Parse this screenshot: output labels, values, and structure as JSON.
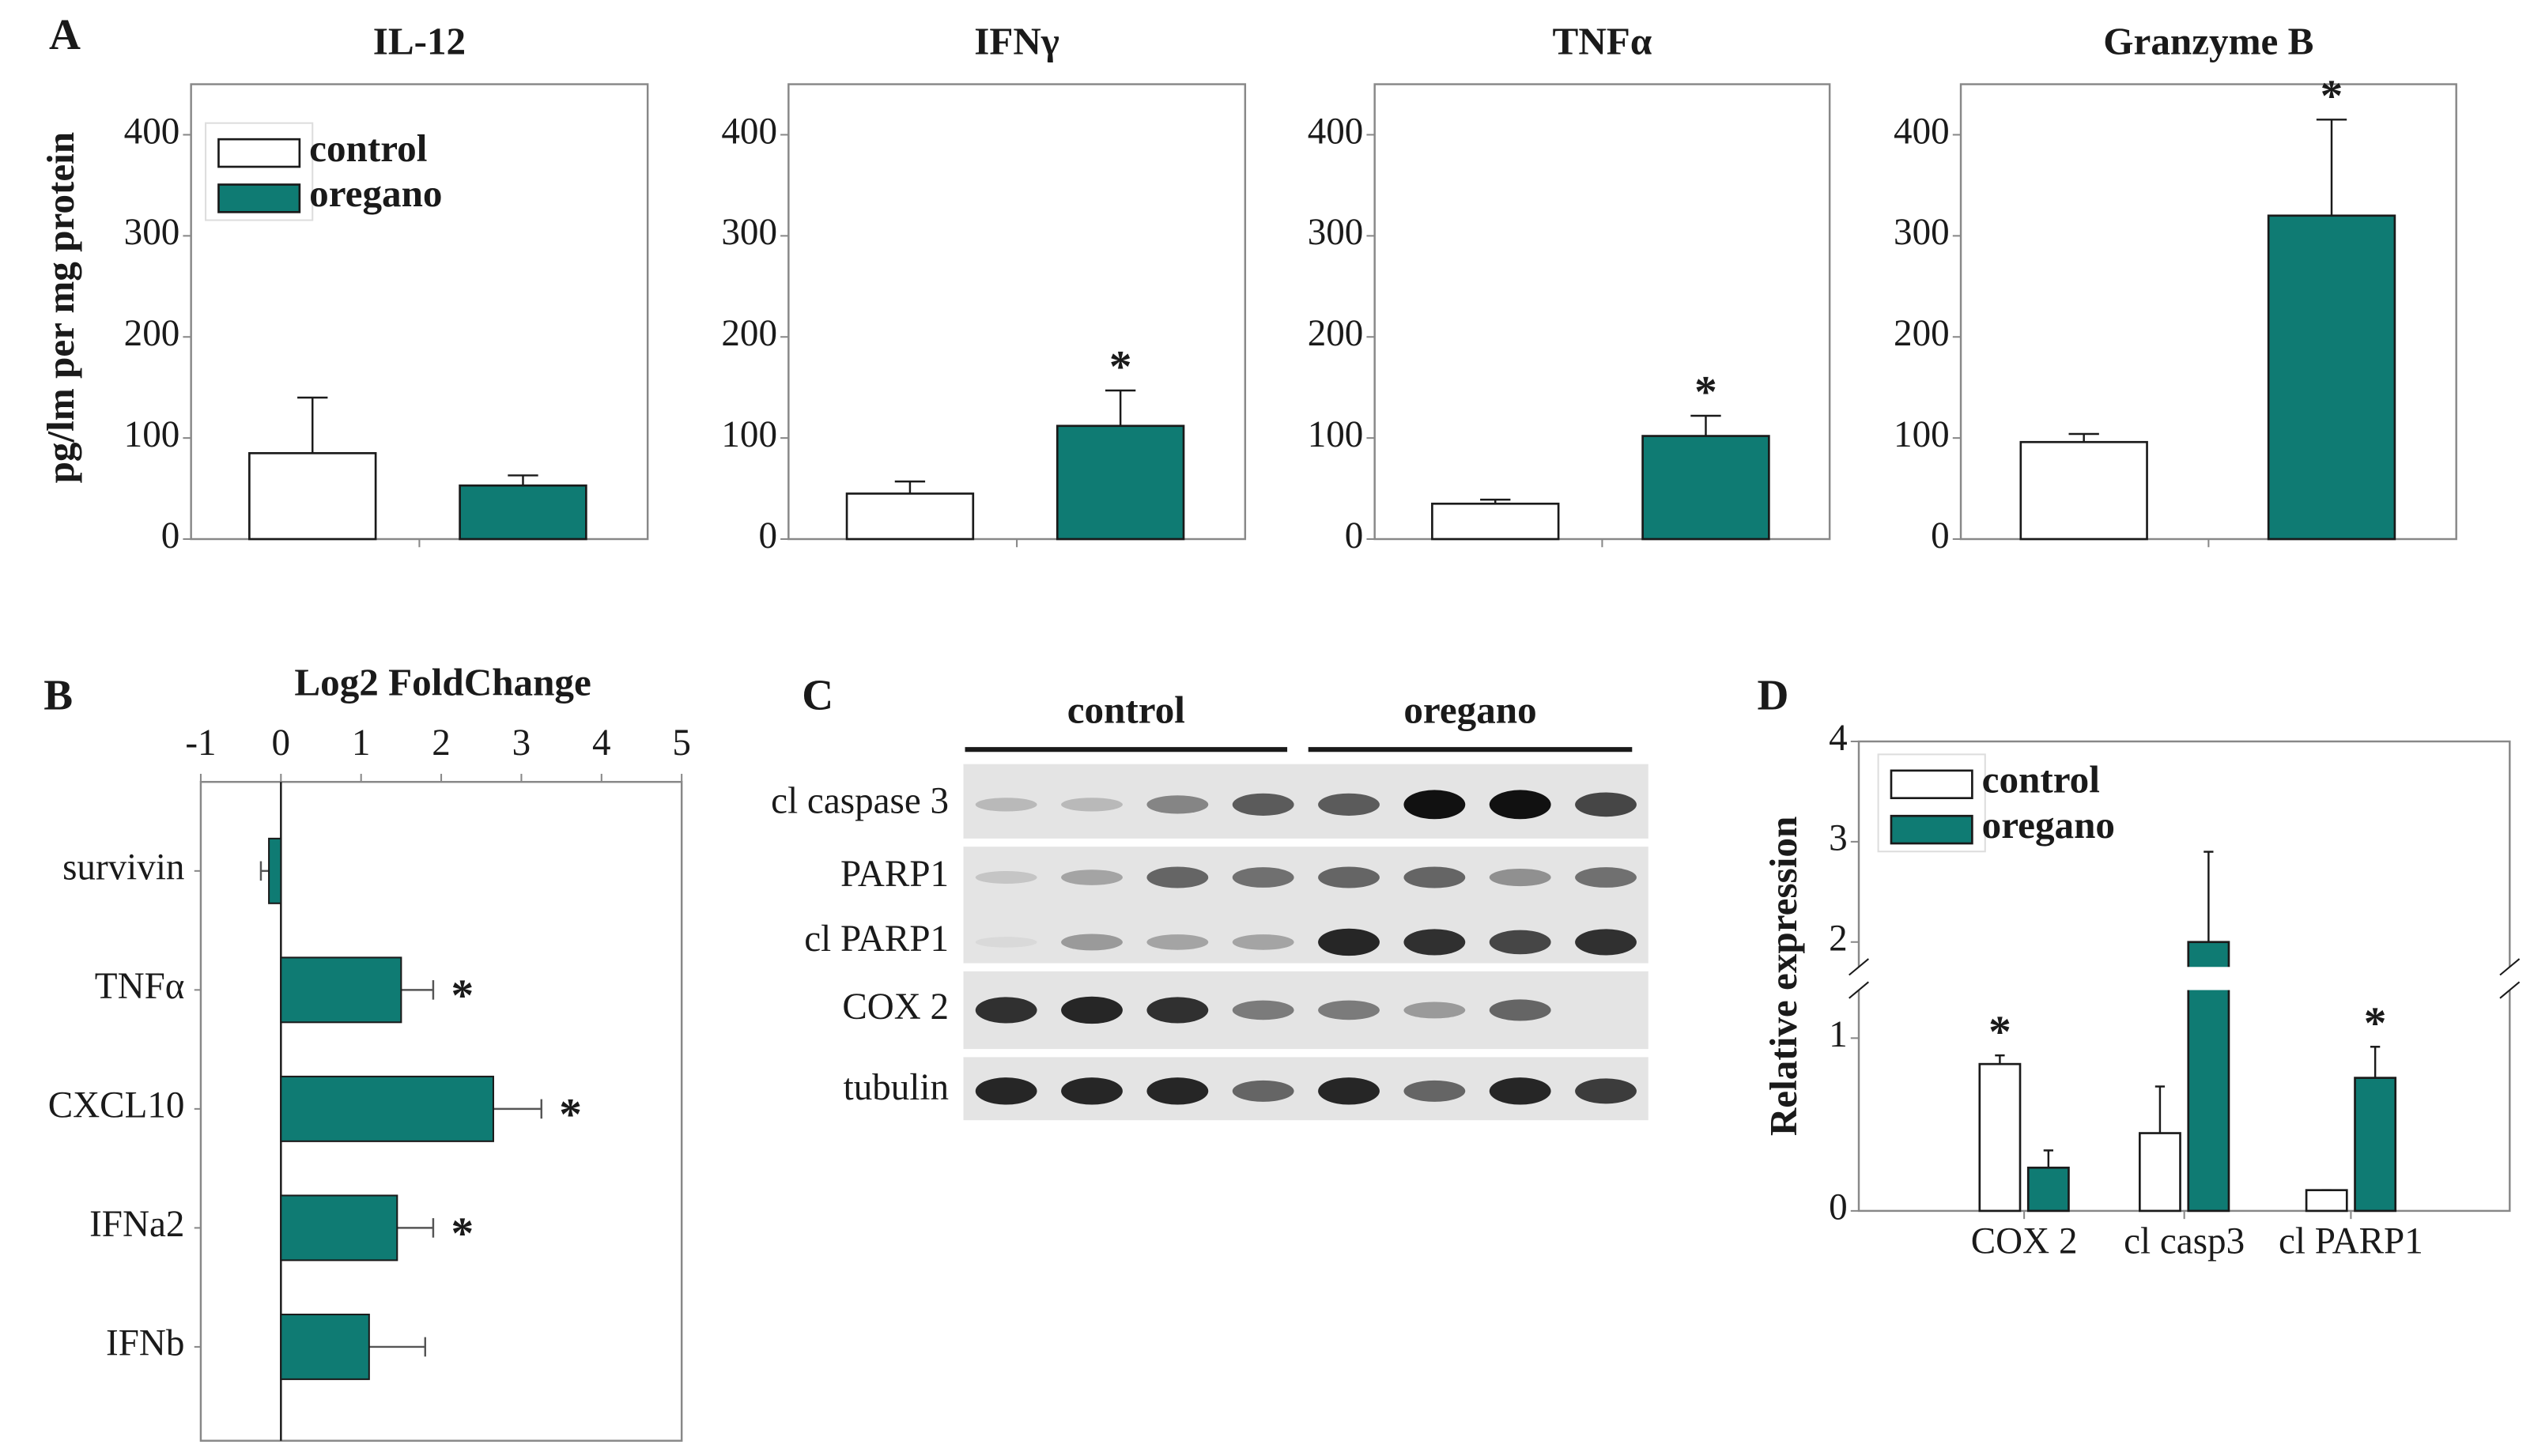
{
  "chart_data": [
    {
      "type": "bar",
      "panel": "A",
      "title": "IL-12",
      "ylabel": "pg/lm per mg protein",
      "legend": "upper left",
      "ylim": [
        0,
        450
      ],
      "yticks": [
        0,
        100,
        200,
        300,
        400
      ],
      "series": [
        {
          "name": "control",
          "color": "#ffffff",
          "values": [
            85
          ],
          "errors": [
            55
          ],
          "markers": [
            null
          ]
        },
        {
          "name": "oregano",
          "color": "#0f7b73",
          "values": [
            53
          ],
          "errors": [
            10
          ],
          "markers": [
            null
          ]
        }
      ]
    },
    {
      "type": "bar",
      "title": "IFNγ",
      "ylim": [
        0,
        450
      ],
      "yticks": [
        0,
        100,
        200,
        300,
        400
      ],
      "series": [
        {
          "color": "#ffffff",
          "values": [
            45
          ],
          "errors": [
            12
          ],
          "markers": [
            null
          ]
        },
        {
          "color": "#0f7b73",
          "values": [
            112
          ],
          "errors": [
            35
          ],
          "markers": [
            "*"
          ]
        }
      ]
    },
    {
      "type": "bar",
      "title": "TNFα",
      "ylim": [
        0,
        450
      ],
      "yticks": [
        0,
        100,
        200,
        300,
        400
      ],
      "series": [
        {
          "color": "#ffffff",
          "values": [
            35
          ],
          "errors": [
            4
          ],
          "markers": [
            null
          ]
        },
        {
          "color": "#0f7b73",
          "values": [
            102
          ],
          "errors": [
            20
          ],
          "markers": [
            "*"
          ]
        }
      ]
    },
    {
      "type": "bar",
      "title": "Granzyme B",
      "ylim": [
        0,
        450
      ],
      "yticks": [
        0,
        100,
        200,
        300,
        400
      ],
      "series": [
        {
          "color": "#ffffff",
          "values": [
            96
          ],
          "errors": [
            8
          ],
          "markers": [
            null
          ]
        },
        {
          "color": "#0f7b73",
          "values": [
            320
          ],
          "errors": [
            95
          ],
          "markers": [
            "*"
          ]
        }
      ]
    },
    {
      "type": "barh",
      "panel": "B",
      "xlabel": "Log2 FoldChange",
      "xlim": [
        -1,
        5
      ],
      "xticks": [
        -1,
        0,
        1,
        2,
        3,
        4,
        5
      ],
      "categories": [
        "survivin",
        "TNFα",
        "CXCL10",
        "IFNa2",
        "IFNb"
      ],
      "color": "#0f7b73",
      "values": [
        -0.15,
        1.5,
        2.65,
        1.45,
        1.1
      ],
      "errors": [
        0.1,
        0.4,
        0.6,
        0.45,
        0.7
      ],
      "markers": [
        null,
        "*",
        "*",
        "*",
        null
      ]
    },
    {
      "type": "blot",
      "panel": "C",
      "groups": [
        "control",
        "oregano"
      ],
      "rows": [
        "cl caspase 3",
        "PARP1",
        "cl PARP1",
        "COX 2",
        "tubulin"
      ]
    },
    {
      "type": "bar",
      "panel": "D",
      "ylabel": "Relative expression",
      "legend": "upper left",
      "ylim": [
        0,
        4
      ],
      "yticks": [
        0,
        1,
        2,
        3,
        4
      ],
      "ybreak": [
        1.25,
        1.8
      ],
      "categories": [
        "COX 2",
        "cl casp3",
        "cl PARP1"
      ],
      "series": [
        {
          "name": "control",
          "color": "#ffffff",
          "values": [
            0.85,
            0.45,
            0.12
          ],
          "errors": [
            0.05,
            0.27,
            0
          ],
          "markers": [
            "*",
            null,
            null
          ]
        },
        {
          "name": "oregano",
          "color": "#0f7b73",
          "values": [
            0.25,
            2.0,
            0.77
          ],
          "errors": [
            0.1,
            0.9,
            0.18
          ],
          "markers": [
            null,
            null,
            "*"
          ]
        }
      ]
    }
  ]
}
